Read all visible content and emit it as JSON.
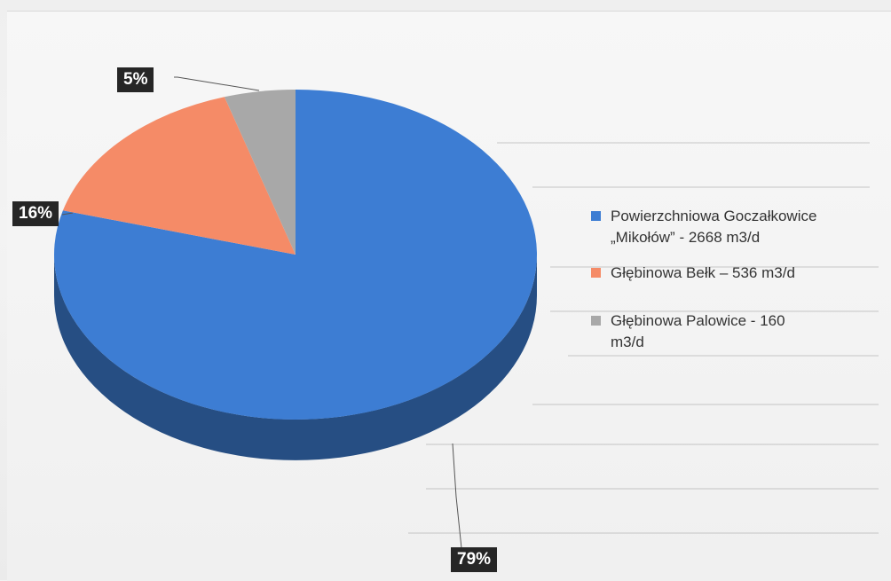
{
  "chart_data": {
    "type": "pie",
    "title": "",
    "slices": [
      {
        "label": "Powierzchniowa Goczałkowice\n„Mikołów” - 2668 m3/d",
        "value": 2668,
        "percent_label": "79%",
        "color": "#3d7dd3"
      },
      {
        "label": "Głębinowa Bełk – 536 m3/d",
        "value": 536,
        "percent_label": "16%",
        "color": "#f58b67"
      },
      {
        "label": "Głębinowa Palowice - 160\nm3/d",
        "value": 160,
        "percent_label": "5%",
        "color": "#a8a8a8"
      }
    ],
    "legend_position": "right"
  }
}
